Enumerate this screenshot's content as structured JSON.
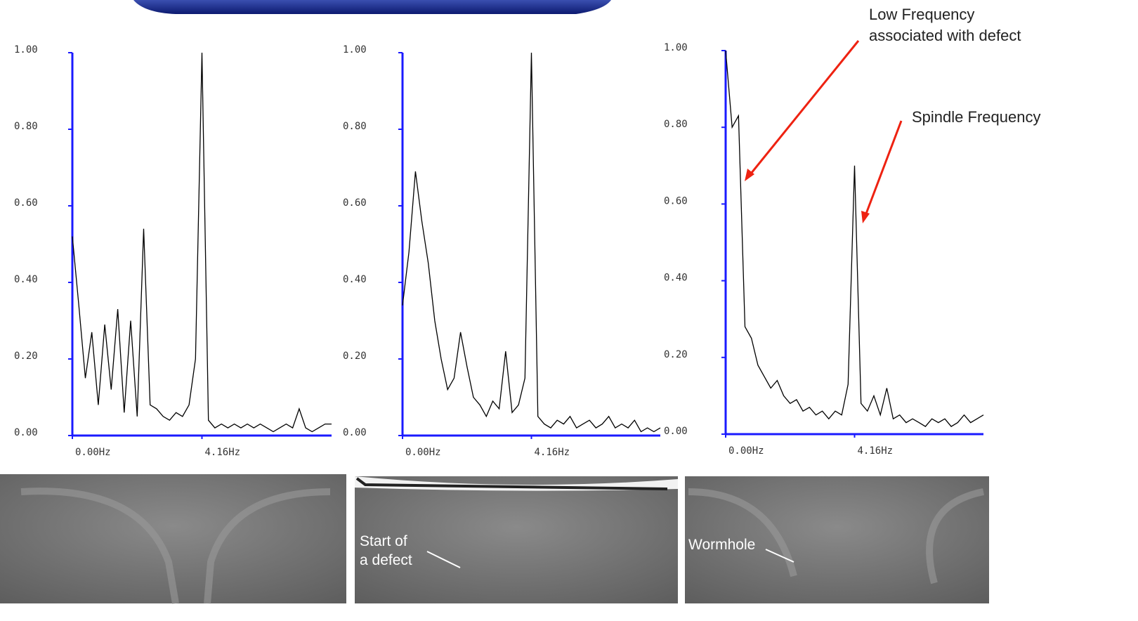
{
  "chart_data": [
    {
      "type": "line",
      "color": "#000000",
      "axis_color": "#1a1aff",
      "x": [
        0,
        0.208,
        0.416,
        0.624,
        0.832,
        1.04,
        1.248,
        1.456,
        1.664,
        1.872,
        2.08,
        2.288,
        2.496,
        2.704,
        2.912,
        3.12,
        3.328,
        3.536,
        3.744,
        3.952,
        4.16,
        4.368,
        4.576,
        4.784,
        4.992,
        5.2,
        5.408,
        5.616,
        5.824,
        6.032,
        6.24,
        6.448,
        6.656,
        6.864,
        7.072,
        7.28,
        7.488,
        7.696,
        7.904,
        8.112,
        8.32
      ],
      "values": [
        0.52,
        0.34,
        0.15,
        0.27,
        0.08,
        0.29,
        0.12,
        0.33,
        0.06,
        0.3,
        0.05,
        0.54,
        0.08,
        0.07,
        0.05,
        0.04,
        0.06,
        0.05,
        0.08,
        0.2,
        1.0,
        0.04,
        0.02,
        0.03,
        0.02,
        0.03,
        0.02,
        0.03,
        0.02,
        0.03,
        0.02,
        0.01,
        0.02,
        0.03,
        0.02,
        0.07,
        0.02,
        0.01,
        0.02,
        0.03,
        0.03
      ],
      "xlim": [
        0,
        8.32
      ],
      "ylim": [
        0,
        1
      ],
      "xticks": [
        {
          "value": 0,
          "label": "0.00Hz"
        },
        {
          "value": 4.16,
          "label": "4.16Hz"
        }
      ],
      "yticks": [
        {
          "value": 0,
          "label": "0.00"
        },
        {
          "value": 0.2,
          "label": "0.20"
        },
        {
          "value": 0.4,
          "label": "0.40"
        },
        {
          "value": 0.6,
          "label": "0.60"
        },
        {
          "value": 0.8,
          "label": "0.80"
        },
        {
          "value": 1,
          "label": "1.00"
        }
      ]
    },
    {
      "type": "line",
      "color": "#000000",
      "axis_color": "#1a1aff",
      "x": [
        0,
        0.208,
        0.416,
        0.624,
        0.832,
        1.04,
        1.248,
        1.456,
        1.664,
        1.872,
        2.08,
        2.288,
        2.496,
        2.704,
        2.912,
        3.12,
        3.328,
        3.536,
        3.744,
        3.952,
        4.16,
        4.368,
        4.576,
        4.784,
        4.992,
        5.2,
        5.408,
        5.616,
        5.824,
        6.032,
        6.24,
        6.448,
        6.656,
        6.864,
        7.072,
        7.28,
        7.488,
        7.696,
        7.904,
        8.112,
        8.32
      ],
      "values": [
        0.34,
        0.48,
        0.69,
        0.56,
        0.45,
        0.3,
        0.2,
        0.12,
        0.15,
        0.27,
        0.18,
        0.1,
        0.08,
        0.05,
        0.09,
        0.07,
        0.22,
        0.06,
        0.08,
        0.15,
        1.0,
        0.05,
        0.03,
        0.02,
        0.04,
        0.03,
        0.05,
        0.02,
        0.03,
        0.04,
        0.02,
        0.03,
        0.05,
        0.02,
        0.03,
        0.02,
        0.04,
        0.01,
        0.02,
        0.01,
        0.02
      ],
      "xlim": [
        0,
        8.32
      ],
      "ylim": [
        0,
        1
      ],
      "xticks": [
        {
          "value": 0,
          "label": "0.00Hz"
        },
        {
          "value": 4.16,
          "label": "4.16Hz"
        }
      ],
      "yticks": [
        {
          "value": 0,
          "label": "0.00"
        },
        {
          "value": 0.2,
          "label": "0.20"
        },
        {
          "value": 0.4,
          "label": "0.40"
        },
        {
          "value": 0.6,
          "label": "0.60"
        },
        {
          "value": 0.8,
          "label": "0.80"
        },
        {
          "value": 1,
          "label": "1.00"
        }
      ]
    },
    {
      "type": "line",
      "color": "#000000",
      "axis_color": "#1a1aff",
      "x": [
        0,
        0.208,
        0.416,
        0.624,
        0.832,
        1.04,
        1.248,
        1.456,
        1.664,
        1.872,
        2.08,
        2.288,
        2.496,
        2.704,
        2.912,
        3.12,
        3.328,
        3.536,
        3.744,
        3.952,
        4.16,
        4.368,
        4.576,
        4.784,
        4.992,
        5.2,
        5.408,
        5.616,
        5.824,
        6.032,
        6.24,
        6.448,
        6.656,
        6.864,
        7.072,
        7.28,
        7.488,
        7.696,
        7.904,
        8.112,
        8.32
      ],
      "values": [
        1.0,
        0.8,
        0.83,
        0.28,
        0.25,
        0.18,
        0.15,
        0.12,
        0.14,
        0.1,
        0.08,
        0.09,
        0.06,
        0.07,
        0.05,
        0.06,
        0.04,
        0.06,
        0.05,
        0.13,
        0.7,
        0.08,
        0.06,
        0.1,
        0.05,
        0.12,
        0.04,
        0.05,
        0.03,
        0.04,
        0.03,
        0.02,
        0.04,
        0.03,
        0.04,
        0.02,
        0.03,
        0.05,
        0.03,
        0.04,
        0.05
      ],
      "xlim": [
        0,
        8.32
      ],
      "ylim": [
        0,
        1
      ],
      "xticks": [
        {
          "value": 0,
          "label": "0.00Hz"
        },
        {
          "value": 4.16,
          "label": "4.16Hz"
        }
      ],
      "yticks": [
        {
          "value": 0,
          "label": "0.00"
        },
        {
          "value": 0.2,
          "label": "0.20"
        },
        {
          "value": 0.4,
          "label": "0.40"
        },
        {
          "value": 0.6,
          "label": "0.60"
        },
        {
          "value": 0.8,
          "label": "0.80"
        },
        {
          "value": 1,
          "label": "1.00"
        }
      ],
      "annotations": [
        [
          "Low Frequency",
          "associated with defect"
        ],
        [
          "Spindle Frequency"
        ]
      ]
    }
  ],
  "micrograph_labels": [
    [
      "Start of",
      "a defect"
    ],
    [
      "Wormhole"
    ]
  ]
}
